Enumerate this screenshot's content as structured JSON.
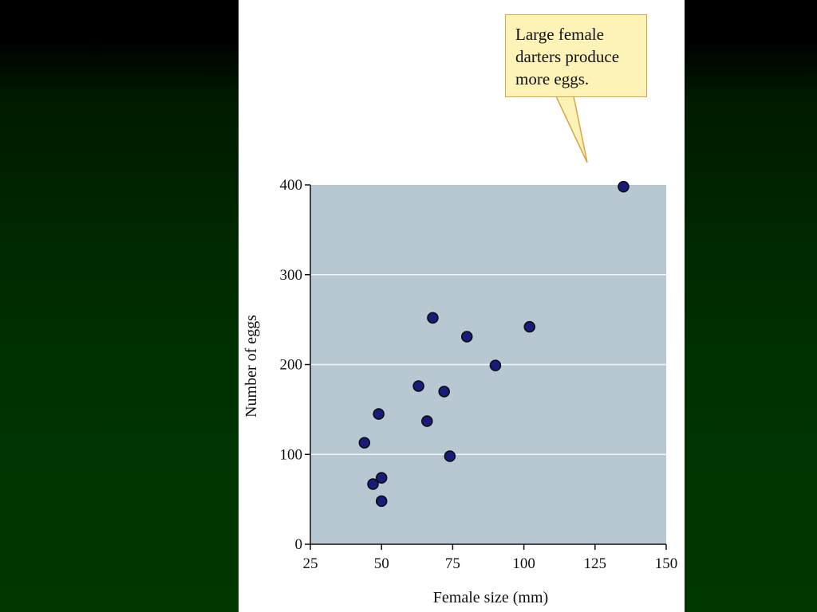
{
  "callout": {
    "lines": [
      "Large female",
      "darters produce",
      "more eggs."
    ]
  },
  "colors": {
    "plot_background": "#b8c8d2",
    "gridline": "#f2f5f7",
    "point_fill": "#1a1a7a",
    "point_stroke": "#0a0a0a",
    "callout_fill": "#fdf3b6",
    "callout_border": "#d9a441"
  },
  "chart_data": {
    "type": "scatter",
    "title": "",
    "xlabel": "Female size (mm)",
    "ylabel": "Number of eggs",
    "xlim": [
      25,
      150
    ],
    "ylim": [
      0,
      400
    ],
    "xticks": [
      25,
      50,
      75,
      100,
      125,
      150
    ],
    "yticks": [
      0,
      100,
      200,
      300,
      400
    ],
    "grid": true,
    "legend": "none",
    "annotation": "Large female darters produce more eggs.",
    "series": [
      {
        "x": [
          44,
          47,
          49,
          50,
          50,
          63,
          66,
          68,
          72,
          74,
          80,
          90,
          102,
          135
        ],
        "y": [
          113,
          67,
          145,
          48,
          74,
          176,
          137,
          252,
          170,
          98,
          231,
          199,
          242,
          398
        ]
      }
    ]
  }
}
